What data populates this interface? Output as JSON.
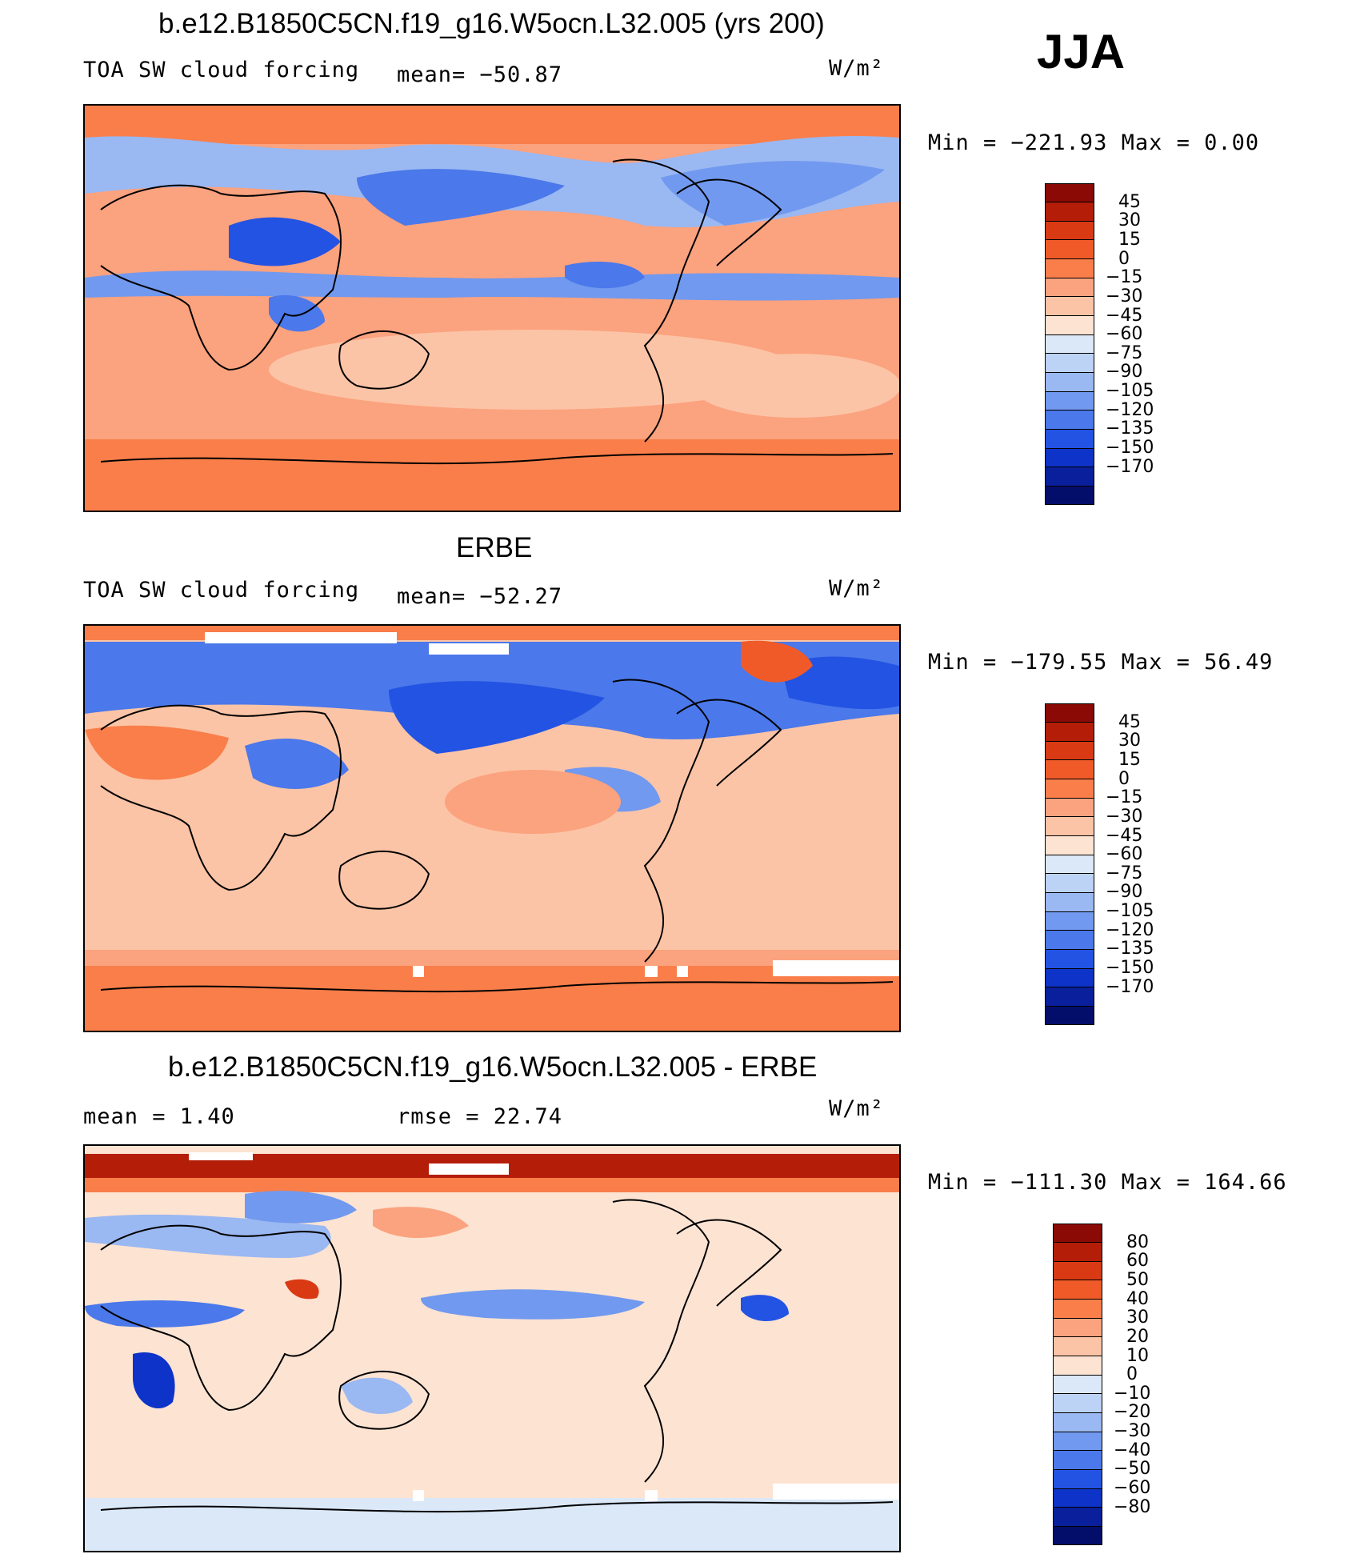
{
  "season": "JJA",
  "units": "W/m²",
  "panels": [
    {
      "id": "model",
      "title": "b.e12.B1850C5CN.f19_g16.W5ocn.L32.005 (yrs 200)",
      "left_label": "TOA SW cloud forcing",
      "center_label": "mean= −50.87",
      "units": "W/m²",
      "minmax": "Min = −221.93 Max =   0.00",
      "colorbar": {
        "labels": [
          "45",
          "30",
          "15",
          "0",
          "−15",
          "−30",
          "−45",
          "−60",
          "−75",
          "−90",
          "−105",
          "−120",
          "−135",
          "−150",
          "−170"
        ],
        "colors": [
          "#8b0a05",
          "#b41e08",
          "#d93a14",
          "#f05a28",
          "#f97e4a",
          "#fba27e",
          "#fcc4a6",
          "#fde3d2",
          "#dbe8f8",
          "#bcd3f6",
          "#9ab8f2",
          "#7199ef",
          "#4b78ea",
          "#2353e3",
          "#0d33c8",
          "#0a1f9c",
          "#030e6b"
        ]
      }
    },
    {
      "id": "obs",
      "title": "ERBE",
      "left_label": "TOA SW cloud forcing",
      "center_label": "mean= −52.27",
      "units": "W/m²",
      "minmax": "Min = −179.55 Max =  56.49",
      "colorbar": {
        "labels": [
          "45",
          "30",
          "15",
          "0",
          "−15",
          "−30",
          "−45",
          "−60",
          "−75",
          "−90",
          "−105",
          "−120",
          "−135",
          "−150",
          "−170"
        ],
        "colors": [
          "#8b0a05",
          "#b41e08",
          "#d93a14",
          "#f05a28",
          "#f97e4a",
          "#fba27e",
          "#fcc4a6",
          "#fde3d2",
          "#dbe8f8",
          "#bcd3f6",
          "#9ab8f2",
          "#7199ef",
          "#4b78ea",
          "#2353e3",
          "#0d33c8",
          "#0a1f9c",
          "#030e6b"
        ]
      }
    },
    {
      "id": "diff",
      "title": "b.e12.B1850C5CN.f19_g16.W5ocn.L32.005 - ERBE",
      "left_label": "mean =    1.40",
      "center_label": "rmse =   22.74",
      "units": "W/m²",
      "minmax": "Min = −111.30 Max = 164.66",
      "colorbar": {
        "labels": [
          "80",
          "60",
          "50",
          "40",
          "30",
          "20",
          "10",
          "0",
          "−10",
          "−20",
          "−30",
          "−40",
          "−50",
          "−60",
          "−80"
        ],
        "colors": [
          "#8b0a05",
          "#b41e08",
          "#d93a14",
          "#f05a28",
          "#f97e4a",
          "#fba27e",
          "#fcc4a6",
          "#fde3d2",
          "#dbe8f8",
          "#bcd3f6",
          "#9ab8f2",
          "#7199ef",
          "#4b78ea",
          "#2353e3",
          "#0d33c8",
          "#0a1f9c",
          "#030e6b"
        ]
      }
    }
  ]
}
